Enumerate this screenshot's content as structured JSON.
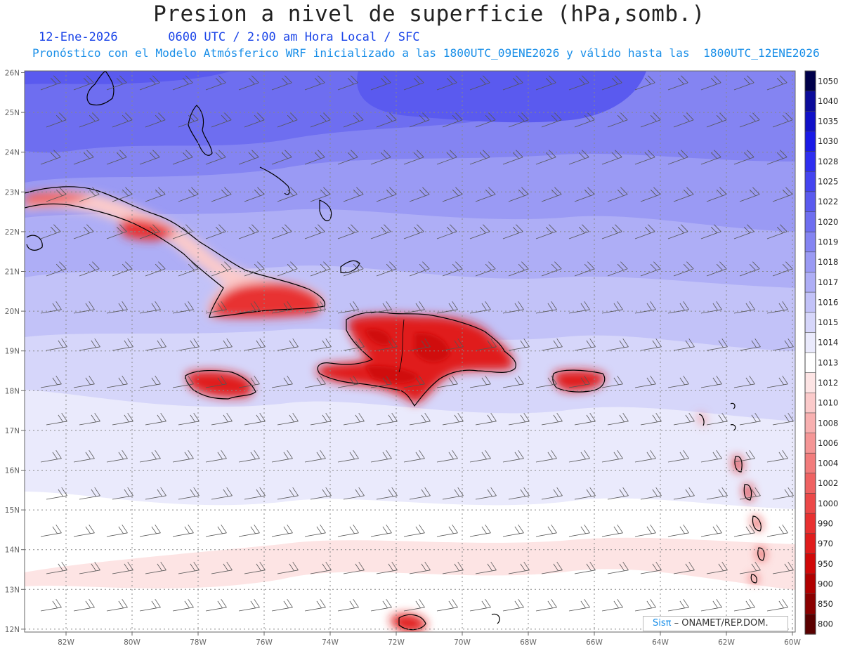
{
  "header": {
    "title": "Presion a nivel de superficie (hPa,somb.)",
    "date": "12-Ene-2026",
    "time": "0600 UTC / 2:00 am Hora Local / SFC",
    "forecast": "Pronóstico con el Modelo Atmósferico WRF inicializado a las 1800UTC_09ENE2026 y válido hasta las  1800UTC_12ENE2026"
  },
  "axes": {
    "lat_labels": [
      "26N",
      "25N",
      "24N",
      "23N",
      "22N",
      "21N",
      "20N",
      "19N",
      "18N",
      "17N",
      "16N",
      "15N",
      "14N",
      "13N",
      "12N"
    ],
    "lon_labels": [
      "82W",
      "80W",
      "78W",
      "76W",
      "74W",
      "72W",
      "70W",
      "68W",
      "66W",
      "64W",
      "62W",
      "60W"
    ]
  },
  "colorbar": {
    "levels": [
      "1050",
      "1040",
      "1035",
      "1030",
      "1028",
      "1025",
      "1022",
      "1020",
      "1019",
      "1018",
      "1017",
      "1016",
      "1015",
      "1014",
      "1013",
      "1012",
      "1010",
      "1008",
      "1006",
      "1004",
      "1002",
      "1000",
      "990",
      "970",
      "950",
      "900",
      "850",
      "800"
    ],
    "colors": [
      "#00004a",
      "#0c0c9a",
      "#1010c8",
      "#1a1ae6",
      "#2e2ef0",
      "#4444f0",
      "#5a5aef",
      "#6e6ef0",
      "#8484f2",
      "#9a9af4",
      "#aeaef6",
      "#c2c2f8",
      "#d6d6fa",
      "#eaeafc",
      "#ffffff",
      "#fde4e4",
      "#fbcaca",
      "#f8b0b0",
      "#f59696",
      "#f27c7c",
      "#ef6262",
      "#ec4848",
      "#e83030",
      "#e01c1c",
      "#d00808",
      "#b00000",
      "#8a0000",
      "#5a0000"
    ]
  },
  "colors": {
    "high_pressure": "#6e6ef0",
    "low_pressure": "#e01c1c",
    "title": "#222222",
    "subtitle_blue": "#1a44e8",
    "subtitle_cyan": "#1a8fe8"
  },
  "credit": {
    "sis": "Sisπ",
    "org": " – ONAMET/REP.DOM."
  }
}
